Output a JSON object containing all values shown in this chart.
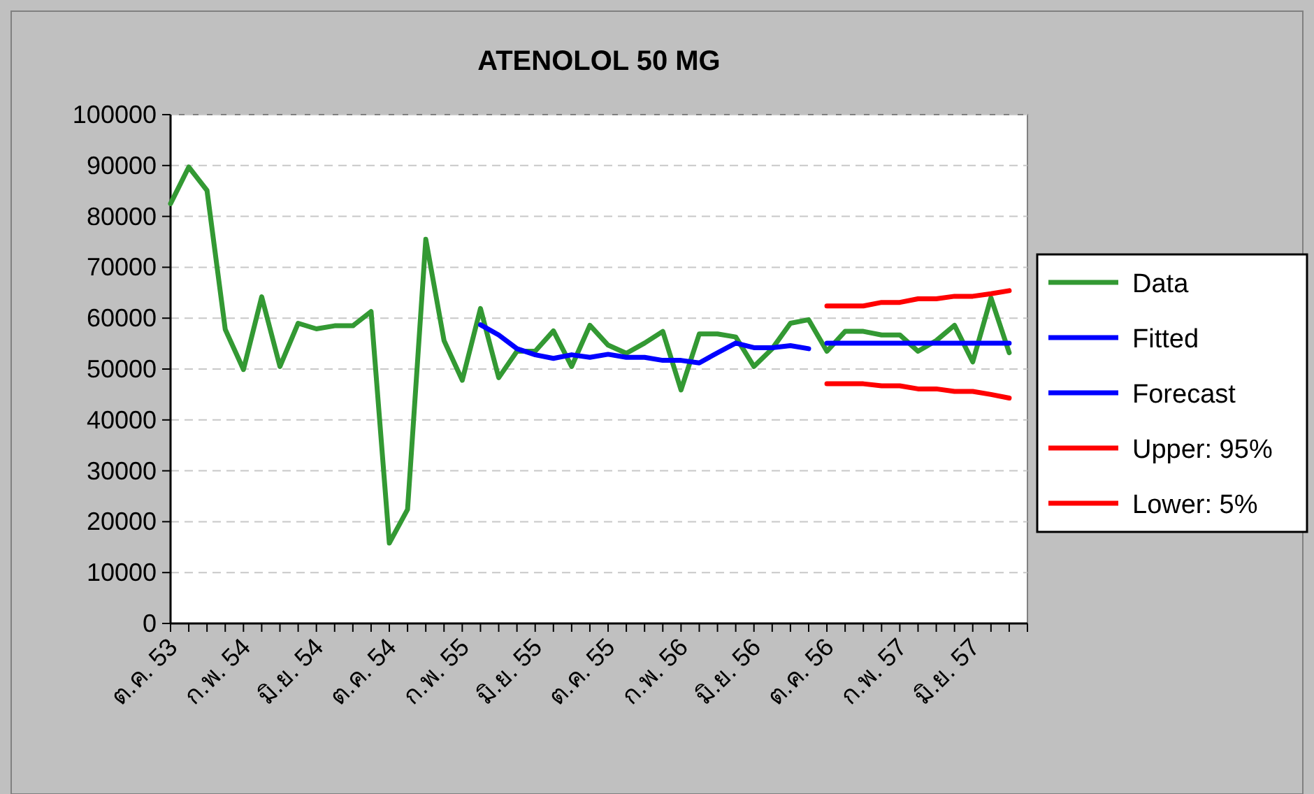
{
  "chart_data": {
    "type": "line",
    "title": "ATENOLOL 50 MG",
    "categories": [
      "ต.ค. 53",
      null,
      null,
      null,
      "ก.พ. 54",
      null,
      null,
      null,
      "มิ.ย. 54",
      null,
      null,
      null,
      "ต.ค. 54",
      null,
      null,
      null,
      "ก.พ. 55",
      null,
      null,
      null,
      "มิ.ย. 55",
      null,
      null,
      null,
      "ต.ค. 55",
      null,
      null,
      null,
      "ก.พ. 56",
      null,
      null,
      null,
      "มิ.ย. 56",
      null,
      null,
      null,
      "ต.ค. 56",
      null,
      null,
      null,
      "ก.พ. 57",
      null,
      null,
      null,
      "มิ.ย. 57",
      null,
      null,
      null
    ],
    "series": [
      {
        "name": "Data",
        "color": "#339933",
        "values": [
          82500,
          89700,
          85100,
          57800,
          49900,
          64200,
          50500,
          59000,
          57900,
          58500,
          58500,
          61300,
          15800,
          22400,
          75500,
          55600,
          47800,
          61900,
          48300,
          53500,
          53500,
          57500,
          50500,
          58600,
          54700,
          53100,
          55100,
          57400,
          45900,
          56900,
          56900,
          56300,
          50500,
          54000,
          59000,
          59700,
          53500,
          57400,
          57400,
          56700,
          56700,
          53500,
          55600,
          58600,
          51400,
          64000,
          53200,
          null
        ]
      },
      {
        "name": "Fitted",
        "color": "#0000ff",
        "values": [
          null,
          null,
          null,
          null,
          null,
          null,
          null,
          null,
          null,
          null,
          null,
          null,
          null,
          null,
          null,
          null,
          null,
          58700,
          56700,
          54000,
          52800,
          52100,
          52800,
          52300,
          52900,
          52300,
          52300,
          51700,
          51700,
          51200,
          53200,
          55100,
          54200,
          54200,
          54600,
          54000,
          null,
          null,
          null,
          null,
          null,
          null,
          null,
          null,
          null,
          null,
          null,
          null
        ]
      },
      {
        "name": "Forecast",
        "color": "#0000ff",
        "values": [
          null,
          null,
          null,
          null,
          null,
          null,
          null,
          null,
          null,
          null,
          null,
          null,
          null,
          null,
          null,
          null,
          null,
          null,
          null,
          null,
          null,
          null,
          null,
          null,
          null,
          null,
          null,
          null,
          null,
          null,
          null,
          null,
          null,
          null,
          null,
          null,
          55100,
          55100,
          55100,
          55100,
          55100,
          55100,
          55100,
          55100,
          55100,
          55100,
          55100,
          null
        ]
      },
      {
        "name": "Upper: 95%",
        "color": "#ff0000",
        "values": [
          null,
          null,
          null,
          null,
          null,
          null,
          null,
          null,
          null,
          null,
          null,
          null,
          null,
          null,
          null,
          null,
          null,
          null,
          null,
          null,
          null,
          null,
          null,
          null,
          null,
          null,
          null,
          null,
          null,
          null,
          null,
          null,
          null,
          null,
          null,
          null,
          62400,
          62400,
          62400,
          63100,
          63100,
          63800,
          63800,
          64300,
          64300,
          64800,
          65400,
          null
        ]
      },
      {
        "name": "Lower: 5%",
        "color": "#ff0000",
        "values": [
          null,
          null,
          null,
          null,
          null,
          null,
          null,
          null,
          null,
          null,
          null,
          null,
          null,
          null,
          null,
          null,
          null,
          null,
          null,
          null,
          null,
          null,
          null,
          null,
          null,
          null,
          null,
          null,
          null,
          null,
          null,
          null,
          null,
          null,
          null,
          null,
          47100,
          47100,
          47100,
          46700,
          46700,
          46100,
          46100,
          45600,
          45600,
          45000,
          44300,
          null
        ]
      }
    ],
    "ylim": [
      0,
      100000
    ],
    "yticks": [
      0,
      10000,
      20000,
      30000,
      40000,
      50000,
      60000,
      70000,
      80000,
      90000,
      100000
    ],
    "grid": "y",
    "legend": "right"
  }
}
